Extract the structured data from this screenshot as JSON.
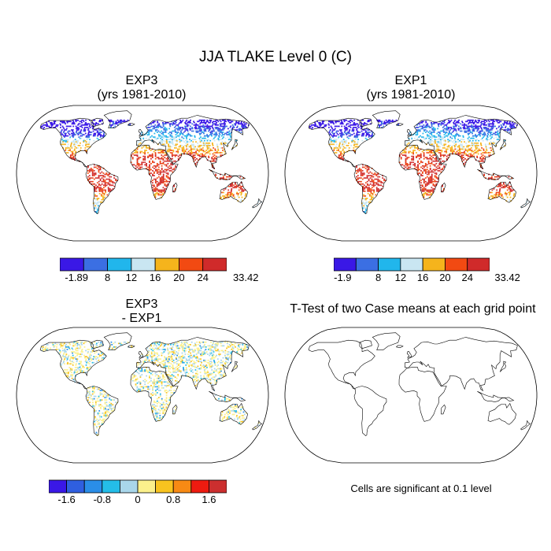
{
  "figure": {
    "title": "JJA TLAKE Level 0 (C)",
    "panels": [
      {
        "id": "exp3",
        "title_line1": "EXP3",
        "title_line2": "(yrs 1981-2010)"
      },
      {
        "id": "exp1",
        "title_line1": "EXP1",
        "title_line2": "(yrs 1981-2010)"
      },
      {
        "id": "diff",
        "title_line1": "EXP3",
        "title_line2": "- EXP1"
      },
      {
        "id": "ttest",
        "title_line1": "T-Test of two Case means at each grid point",
        "title_line2": ""
      }
    ],
    "significance_note": "Cells are significant at 0.1 level"
  },
  "colorbars": {
    "exp3": {
      "colors": [
        "#3a18e6",
        "#3b6fe3",
        "#21b6ec",
        "#c9e6f2",
        "#f5b41c",
        "#f24a12",
        "#d02a2a"
      ],
      "labels": [
        "-1.89",
        "8",
        "12",
        "16",
        "20",
        "24",
        "33.42"
      ]
    },
    "exp1": {
      "colors": [
        "#3a18e6",
        "#3b6fe3",
        "#21b6ec",
        "#c9e6f2",
        "#f5b41c",
        "#f24a12",
        "#d02a2a"
      ],
      "labels": [
        "-1.9",
        "8",
        "12",
        "16",
        "20",
        "24",
        "33.42"
      ]
    },
    "diff": {
      "colors": [
        "#3a18e6",
        "#2f5fe0",
        "#2a8ee8",
        "#24bde8",
        "#a9d6ea",
        "#fbf08c",
        "#f8c31f",
        "#f88a14",
        "#ee1b10",
        "#cc2f2f"
      ],
      "labels": [
        "-1.6",
        "-0.8",
        "0",
        "0.8",
        "1.6"
      ]
    }
  }
}
